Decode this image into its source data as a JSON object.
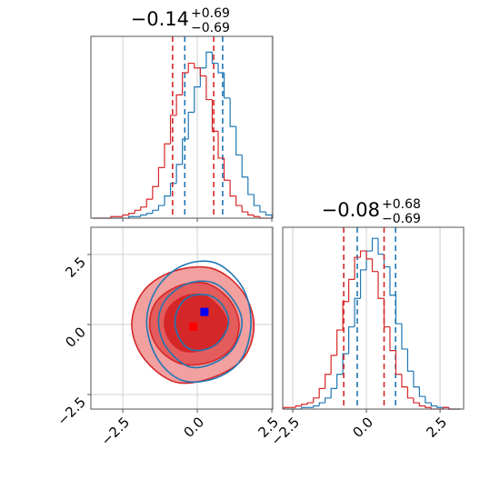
{
  "chart_data": [
    {
      "type": "histogram",
      "title": "−0.14",
      "title_sup": "+0.69",
      "title_sub": "−0.69",
      "xlim": [
        -3.57,
        2.53
      ],
      "ylim": [
        0,
        115
      ],
      "xticks": [
        -2.5,
        0,
        2.5
      ],
      "grid": true,
      "bins": [
        -3.5,
        -3.3,
        -3.1,
        -2.9,
        -2.7,
        -2.5,
        -2.3,
        -2.1,
        -1.9,
        -1.7,
        -1.5,
        -1.3,
        -1.1,
        -0.9,
        -0.7,
        -0.5,
        -0.3,
        -0.1,
        0.1,
        0.3,
        0.5,
        0.7,
        0.9,
        1.1,
        1.3,
        1.5,
        1.7,
        1.9,
        2.1,
        2.3,
        2.5
      ],
      "series": [
        {
          "color": "#1f77b4",
          "values": [
            0,
            0,
            0,
            0,
            0,
            0,
            1,
            1,
            2,
            3,
            5,
            8,
            14,
            22,
            34,
            50,
            67,
            83,
            95,
            105,
            98,
            92,
            76,
            58,
            40,
            26,
            15,
            8,
            4,
            2
          ],
          "quantiles": [
            -0.42,
            0.85
          ]
        },
        {
          "color": "#d62728",
          "values": [
            0,
            0,
            0,
            1,
            1,
            2,
            3,
            5,
            7,
            12,
            20,
            32,
            47,
            65,
            78,
            92,
            98,
            95,
            90,
            75,
            55,
            38,
            24,
            14,
            8,
            4,
            2,
            1,
            0,
            0
          ],
          "quantiles": [
            -0.83,
            0.55
          ]
        }
      ]
    },
    {
      "type": "contour",
      "xlim": [
        -3.57,
        2.53
      ],
      "ylim": [
        -3.02,
        3.47
      ],
      "xticks": [
        {
          "value": -2.5,
          "label": "−2.5"
        },
        {
          "value": 0,
          "label": "0.0"
        },
        2.5
      ],
      "yticks": [
        {
          "value": -2.5,
          "label": "−2.5"
        },
        {
          "value": 0,
          "label": "0.0"
        },
        2.5
      ],
      "grid": true,
      "series": [
        {
          "color": "#d62728",
          "filled": true,
          "contours": [
            {
              "fill": "#f2a0a0",
              "x": [
                1.9,
                1.5,
                0.5,
                -0.8,
                -1.8,
                -2.2,
                -1.8,
                -0.75,
                0.5,
                1.55
              ],
              "y": [
                0.0,
                1.2,
                2.0,
                1.9,
                1.2,
                0.0,
                -1.2,
                -2.05,
                -1.9,
                -1.2
              ]
            },
            {
              "fill": "#e45c5c",
              "x": [
                1.4,
                1.1,
                0.35,
                -0.55,
                -1.35,
                -1.6,
                -1.3,
                -0.55,
                0.4,
                1.15
              ],
              "y": [
                0,
                0.85,
                1.45,
                1.4,
                0.85,
                0,
                -0.85,
                -1.4,
                -1.35,
                -0.85
              ]
            },
            {
              "fill": "#d62728",
              "x": [
                1.0,
                0.75,
                0.2,
                -0.45,
                -0.95,
                -1.1,
                -0.9,
                -0.45,
                0.25,
                0.8
              ],
              "y": [
                0.05,
                0.6,
                1.05,
                1.0,
                0.6,
                0,
                -0.6,
                -0.95,
                -0.9,
                -0.55
              ]
            }
          ]
        },
        {
          "color": "#1f77b4",
          "filled": false,
          "contours": [
            {
              "x": [
                1.8,
                1.5,
                0.6,
                -0.5,
                -1.35,
                -1.7,
                -1.35,
                -0.5,
                0.65,
                1.5
              ],
              "y": [
                0.1,
                1.35,
                2.2,
                2.1,
                1.3,
                0.1,
                -1.2,
                -2.0,
                -1.9,
                -1.2
              ]
            },
            {
              "x": [
                1.5,
                1.15,
                0.5,
                -0.35,
                -1.05,
                -1.3,
                -1.05,
                -0.3,
                0.5,
                1.2
              ],
              "y": [
                0.1,
                0.95,
                1.5,
                1.45,
                0.9,
                0.1,
                -0.8,
                -1.5,
                -1.4,
                -0.85
              ]
            },
            {
              "x": [
                1.05,
                0.8,
                0.35,
                -0.25,
                -0.6,
                -0.75,
                -0.6,
                -0.2,
                0.4,
                0.85
              ],
              "y": [
                0.15,
                0.75,
                1.05,
                1.0,
                0.65,
                0.1,
                -0.5,
                -0.9,
                -0.85,
                -0.45
              ]
            }
          ]
        }
      ],
      "markers": [
        {
          "x": -0.14,
          "y": -0.08,
          "color": "#ff0000"
        },
        {
          "x": 0.24,
          "y": 0.45,
          "color": "#0000ff"
        }
      ]
    },
    {
      "type": "histogram",
      "title": "−0.08",
      "title_sup": "+0.68",
      "title_sub": "−0.69",
      "xlim": [
        -2.84,
        3.3
      ],
      "ylim": [
        0,
        115
      ],
      "xticks": [
        {
          "value": -2.5,
          "label": "−2.5"
        },
        {
          "value": 0,
          "label": "0.0"
        },
        2.5
      ],
      "grid": true,
      "bins": [
        -2.8,
        -2.6,
        -2.4,
        -2.2,
        -2.0,
        -1.8,
        -1.6,
        -1.4,
        -1.2,
        -1.0,
        -0.8,
        -0.6,
        -0.4,
        -0.2,
        0.0,
        0.2,
        0.4,
        0.6,
        0.8,
        1.0,
        1.2,
        1.4,
        1.6,
        1.8,
        2.0,
        2.2,
        2.4,
        2.6,
        2.8,
        3.0,
        3.2
      ],
      "series": [
        {
          "color": "#1f77b4",
          "values": [
            0,
            0,
            0,
            1,
            1,
            2,
            4,
            7,
            13,
            22,
            35,
            52,
            70,
            88,
            100,
            108,
            98,
            90,
            72,
            54,
            38,
            24,
            14,
            8,
            4,
            2,
            1,
            1,
            0,
            0
          ],
          "quantiles": [
            -0.31,
            0.99
          ]
        },
        {
          "color": "#d62728",
          "values": [
            1,
            1,
            2,
            3,
            4,
            7,
            13,
            22,
            34,
            50,
            68,
            82,
            96,
            100,
            95,
            87,
            70,
            52,
            37,
            22,
            14,
            7,
            4,
            2,
            1,
            0,
            0,
            1,
            0,
            0
          ],
          "quantiles": [
            -0.77,
            0.6
          ]
        }
      ]
    }
  ]
}
